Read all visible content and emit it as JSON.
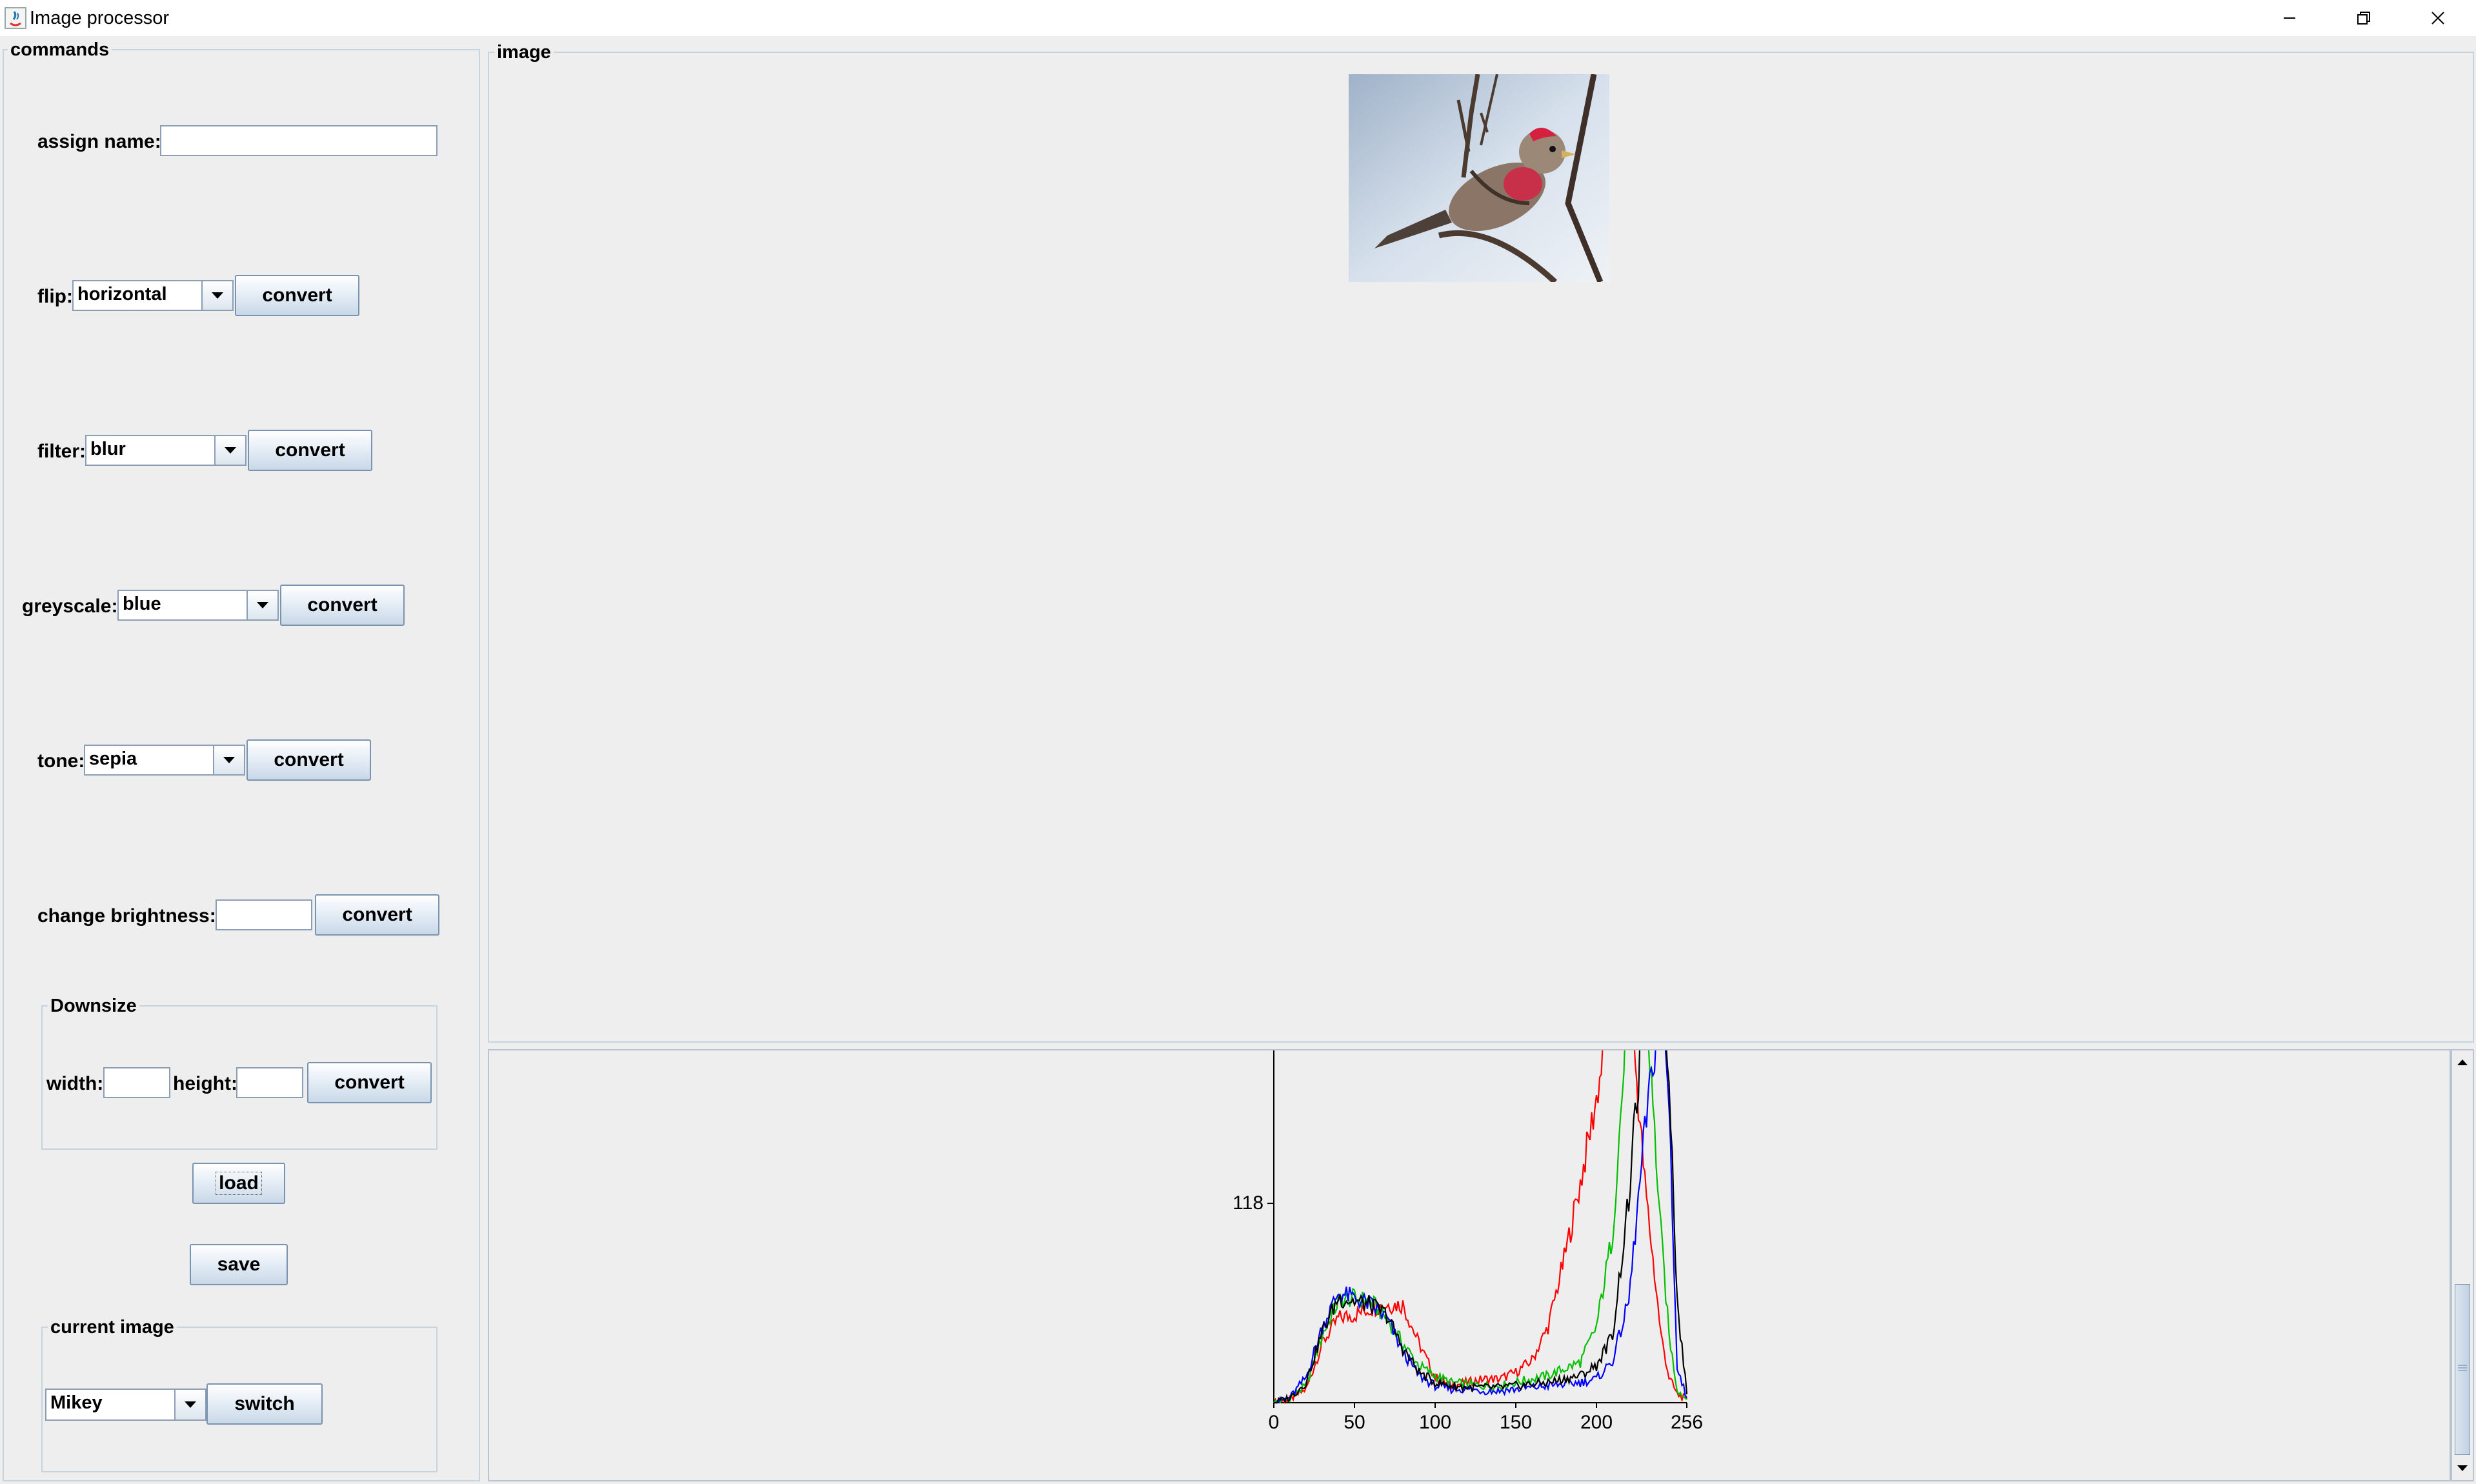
{
  "window": {
    "title": "Image processor",
    "minimize_icon": "minimize-icon",
    "restore_icon": "restore-icon",
    "close_icon": "close-icon"
  },
  "commands": {
    "legend": "commands",
    "assign_name": {
      "label": "assign name:",
      "value": ""
    },
    "flip": {
      "label": "flip:",
      "selected": "horizontal",
      "button": "convert"
    },
    "filter": {
      "label": "filter:",
      "selected": "blur",
      "button": "convert"
    },
    "greyscale": {
      "label": "greyscale:",
      "selected": "blue",
      "button": "convert"
    },
    "tone": {
      "label": "tone:",
      "selected": "sepia",
      "button": "convert"
    },
    "brightness": {
      "label": "change brightness:",
      "value": "",
      "button": "convert"
    },
    "downsize": {
      "legend": "Downsize",
      "width_label": "width:",
      "width_value": "",
      "height_label": "height:",
      "height_value": "",
      "button": "convert"
    },
    "load_button": "load",
    "save_button": "save",
    "current_image": {
      "legend": "current image",
      "selected": "Mikey",
      "button": "switch"
    }
  },
  "image_panel": {
    "legend": "image",
    "photo_subject": "bird on branch"
  },
  "colors": {
    "red": "#ff0000",
    "green": "#00c000",
    "blue": "#0000ff",
    "black": "#000000"
  },
  "chart_data": {
    "type": "line",
    "title": "",
    "xlabel": "",
    "ylabel": "",
    "xlim": [
      0,
      256
    ],
    "ylim": [
      0,
      220
    ],
    "x_ticks": [
      "0",
      "50",
      "100",
      "150",
      "200",
      "256"
    ],
    "x_tick_values": [
      0,
      50,
      100,
      150,
      200,
      256
    ],
    "y_ticks": [
      "118"
    ],
    "y_tick_values": [
      118
    ],
    "x": [
      0,
      10,
      20,
      30,
      40,
      50,
      60,
      70,
      80,
      90,
      100,
      110,
      120,
      130,
      140,
      150,
      160,
      170,
      180,
      190,
      200,
      210,
      220,
      230,
      240,
      245,
      250,
      256
    ],
    "series": [
      {
        "color": "#ff0000",
        "values": [
          0,
          2,
          8,
          35,
          50,
          52,
          56,
          58,
          58,
          35,
          15,
          10,
          12,
          14,
          14,
          18,
          25,
          45,
          85,
          130,
          180,
          240,
          250,
          130,
          40,
          15,
          5,
          2
        ]
      },
      {
        "color": "#00c000",
        "values": [
          0,
          3,
          10,
          40,
          60,
          62,
          60,
          50,
          35,
          22,
          16,
          12,
          11,
          10,
          10,
          12,
          14,
          16,
          20,
          24,
          45,
          100,
          240,
          250,
          100,
          40,
          8,
          2
        ]
      },
      {
        "color": "#0000ff",
        "values": [
          0,
          3,
          15,
          45,
          65,
          62,
          58,
          50,
          30,
          16,
          10,
          8,
          8,
          7,
          7,
          8,
          9,
          10,
          11,
          12,
          14,
          25,
          60,
          160,
          240,
          180,
          20,
          3
        ]
      },
      {
        "color": "#000000",
        "values": [
          0,
          3,
          12,
          42,
          62,
          60,
          58,
          52,
          32,
          18,
          12,
          10,
          9,
          9,
          9,
          10,
          11,
          12,
          14,
          16,
          22,
          40,
          120,
          240,
          250,
          200,
          60,
          5
        ]
      }
    ]
  }
}
